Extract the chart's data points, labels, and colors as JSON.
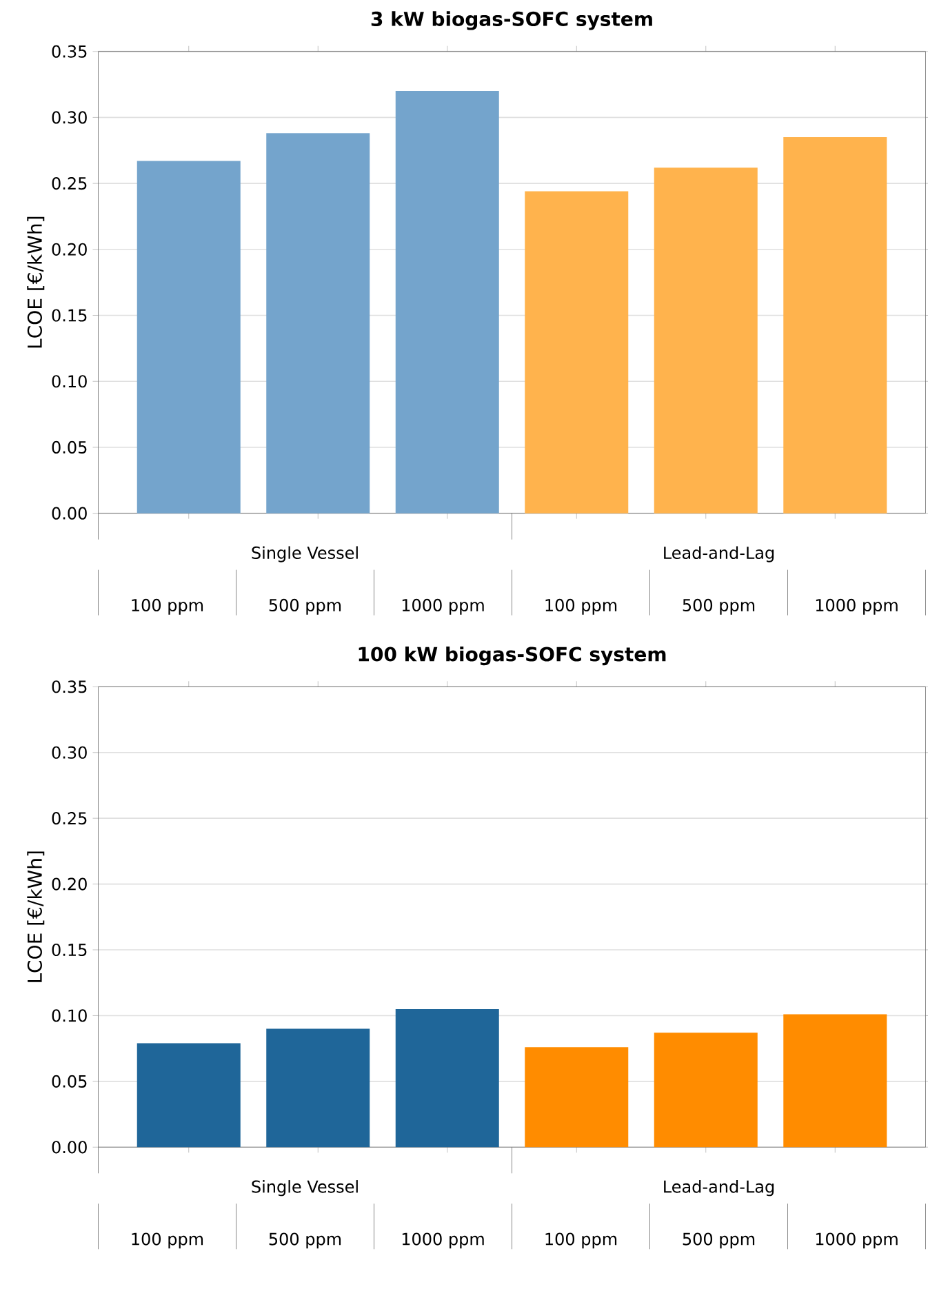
{
  "chart_data": [
    {
      "type": "bar",
      "title": "3 kW biogas-SOFC system",
      "ylabel": "LCOE [€/kWh]",
      "categories": [
        "100 ppm",
        "500 ppm",
        "1000 ppm",
        "100 ppm",
        "500 ppm",
        "1000 ppm"
      ],
      "series": [
        {
          "name": "Single Vessel",
          "color": "#74a4cc",
          "values": [
            0.267,
            0.288,
            0.32,
            null,
            null,
            null
          ]
        },
        {
          "name": "Lead-and-Lag",
          "color": "#ffb34d",
          "values": [
            null,
            null,
            null,
            0.244,
            0.262,
            0.285
          ]
        }
      ],
      "ylim": [
        0,
        0.35
      ],
      "yticks": [
        {
          "value": 0,
          "label": "0.00"
        },
        {
          "value": 0.05,
          "label": "0.05"
        },
        {
          "value": 0.1,
          "label": "0.10"
        },
        {
          "value": 0.15,
          "label": "0.15"
        },
        {
          "value": 0.2,
          "label": "0.20"
        },
        {
          "value": 0.25,
          "label": "0.25"
        },
        {
          "value": 0.3,
          "label": "0.30"
        },
        {
          "value": 0.35,
          "label": "0.35"
        }
      ],
      "grid": "y"
    },
    {
      "type": "bar",
      "title": "100 kW biogas-SOFC system",
      "ylabel": "LCOE [€/kWh]",
      "categories": [
        "100 ppm",
        "500 ppm",
        "1000 ppm",
        "100 ppm",
        "500 ppm",
        "1000 ppm"
      ],
      "series": [
        {
          "name": "Single Vessel",
          "color": "#1f6699",
          "values": [
            0.079,
            0.09,
            0.105,
            null,
            null,
            null
          ]
        },
        {
          "name": "Lead-and-Lag",
          "color": "#ff8c00",
          "values": [
            null,
            null,
            null,
            0.076,
            0.087,
            0.101
          ]
        }
      ],
      "ylim": [
        0,
        0.35
      ],
      "yticks": [
        {
          "value": 0,
          "label": "0.00"
        },
        {
          "value": 0.05,
          "label": "0.05"
        },
        {
          "value": 0.1,
          "label": "0.10"
        },
        {
          "value": 0.15,
          "label": "0.15"
        },
        {
          "value": 0.2,
          "label": "0.20"
        },
        {
          "value": 0.25,
          "label": "0.25"
        },
        {
          "value": 0.3,
          "label": "0.30"
        },
        {
          "value": 0.35,
          "label": "0.35"
        }
      ],
      "grid": "y"
    }
  ]
}
